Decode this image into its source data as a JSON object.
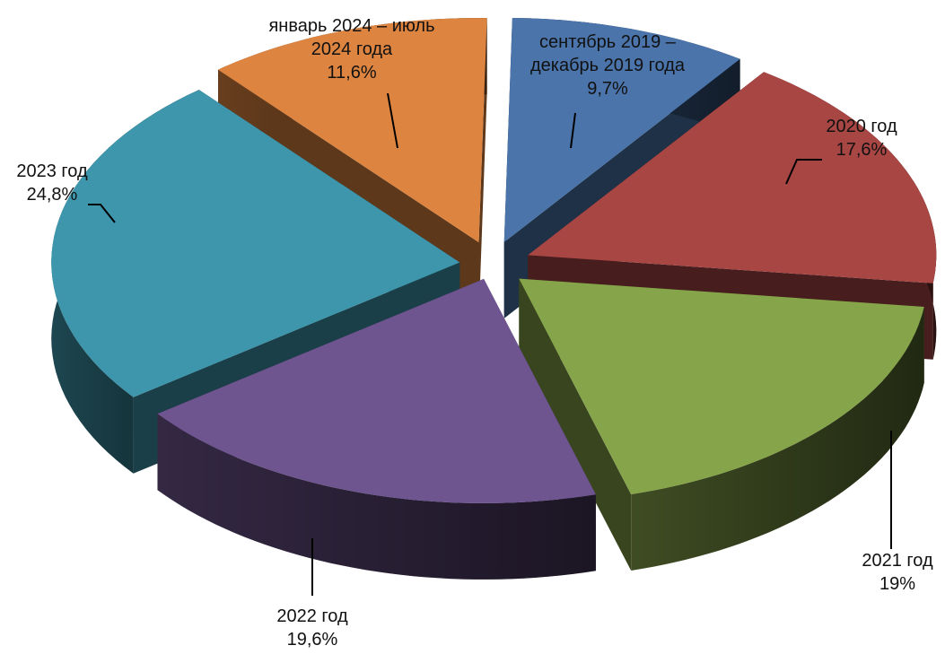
{
  "chart_data": {
    "type": "pie",
    "title": "",
    "style": "3d-exploded",
    "slices": [
      {
        "label": "сентябрь 2019 – декабрь 2019 года",
        "value": 9.7,
        "value_label": "9,7%",
        "color": "#4a74aa"
      },
      {
        "label": "2020 год",
        "value": 17.6,
        "value_label": "17,6%",
        "color": "#a84644"
      },
      {
        "label": "2021 год",
        "value": 19,
        "value_label": "19%",
        "color": "#86a44a"
      },
      {
        "label": "2022 год",
        "value": 19.6,
        "value_label": "19,6%",
        "color": "#6e5590"
      },
      {
        "label": "2023 год",
        "value": 24.8,
        "value_label": "24,8%",
        "color": "#3e96ac"
      },
      {
        "label": "январь 2024 – июль 2024 года",
        "value": 11.6,
        "value_label": "11,6%",
        "color": "#dd8540"
      }
    ]
  }
}
